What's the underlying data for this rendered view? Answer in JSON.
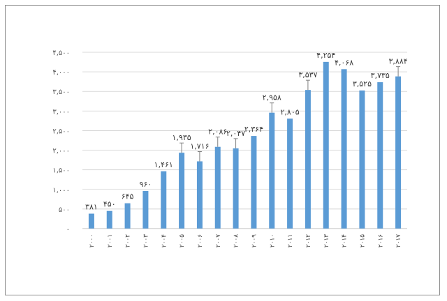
{
  "chart_data": {
    "type": "bar",
    "title": "",
    "xlabel": "",
    "ylabel": "",
    "categories": [
      "۲۰۰۰",
      "۲۰۰۱",
      "۲۰۰۲",
      "۲۰۰۳",
      "۲۰۰۴",
      "۲۰۰۵",
      "۲۰۰۶",
      "۲۰۰۷",
      "۲۰۰۸",
      "۲۰۰۹",
      "۲۰۱۰",
      "۲۰۱۱",
      "۲۰۱۲",
      "۲۰۱۳",
      "۲۰۱۴",
      "۲۰۱۵",
      "۲۰۱۶",
      "۲۰۱۷"
    ],
    "values": [
      381,
      450,
      645,
      960,
      1461,
      1935,
      1716,
      2086,
      2047,
      2364,
      2958,
      2805,
      3537,
      4254,
      4068,
      3525,
      3735,
      3884
    ],
    "data_labels": [
      "۳۸۱",
      "۴۵۰",
      "۶۴۵",
      "۹۶۰",
      "۱,۴۶۱",
      "۱,۹۳۵",
      "۱,۷۱۶",
      "۲,۰۸۶",
      "۲,۰۴۷",
      "۲,۳۶۴",
      "۲,۹۵۸",
      "۲,۸۰۵",
      "۳,۵۳۷",
      "۴,۲۵۴",
      "۴,۰۶۸",
      "۳,۵۲۵",
      "۳,۷۳۵",
      "۳,۸۸۴"
    ],
    "error_bars": [
      false,
      false,
      false,
      false,
      false,
      true,
      true,
      true,
      true,
      false,
      true,
      false,
      true,
      false,
      false,
      false,
      false,
      true
    ],
    "ylim": [
      0,
      4500
    ],
    "y_ticks": [
      0,
      500,
      1000,
      1500,
      2000,
      2500,
      3000,
      3500,
      4000,
      4500
    ],
    "y_tick_labels": [
      "۰",
      "۵۰۰",
      "۱,۰۰۰",
      "۱,۵۰۰",
      "۲,۰۰۰",
      "۲,۵۰۰",
      "۳,۰۰۰",
      "۳,۵۰۰",
      "۴,۰۰۰",
      "۴,۵۰۰"
    ],
    "grid": "horizontal",
    "legend": "none",
    "colors": {
      "bar": "#5b9bd5",
      "grid": "#d9d9d9",
      "axis": "#bfbfbf",
      "error": "#7f7f7f"
    }
  }
}
